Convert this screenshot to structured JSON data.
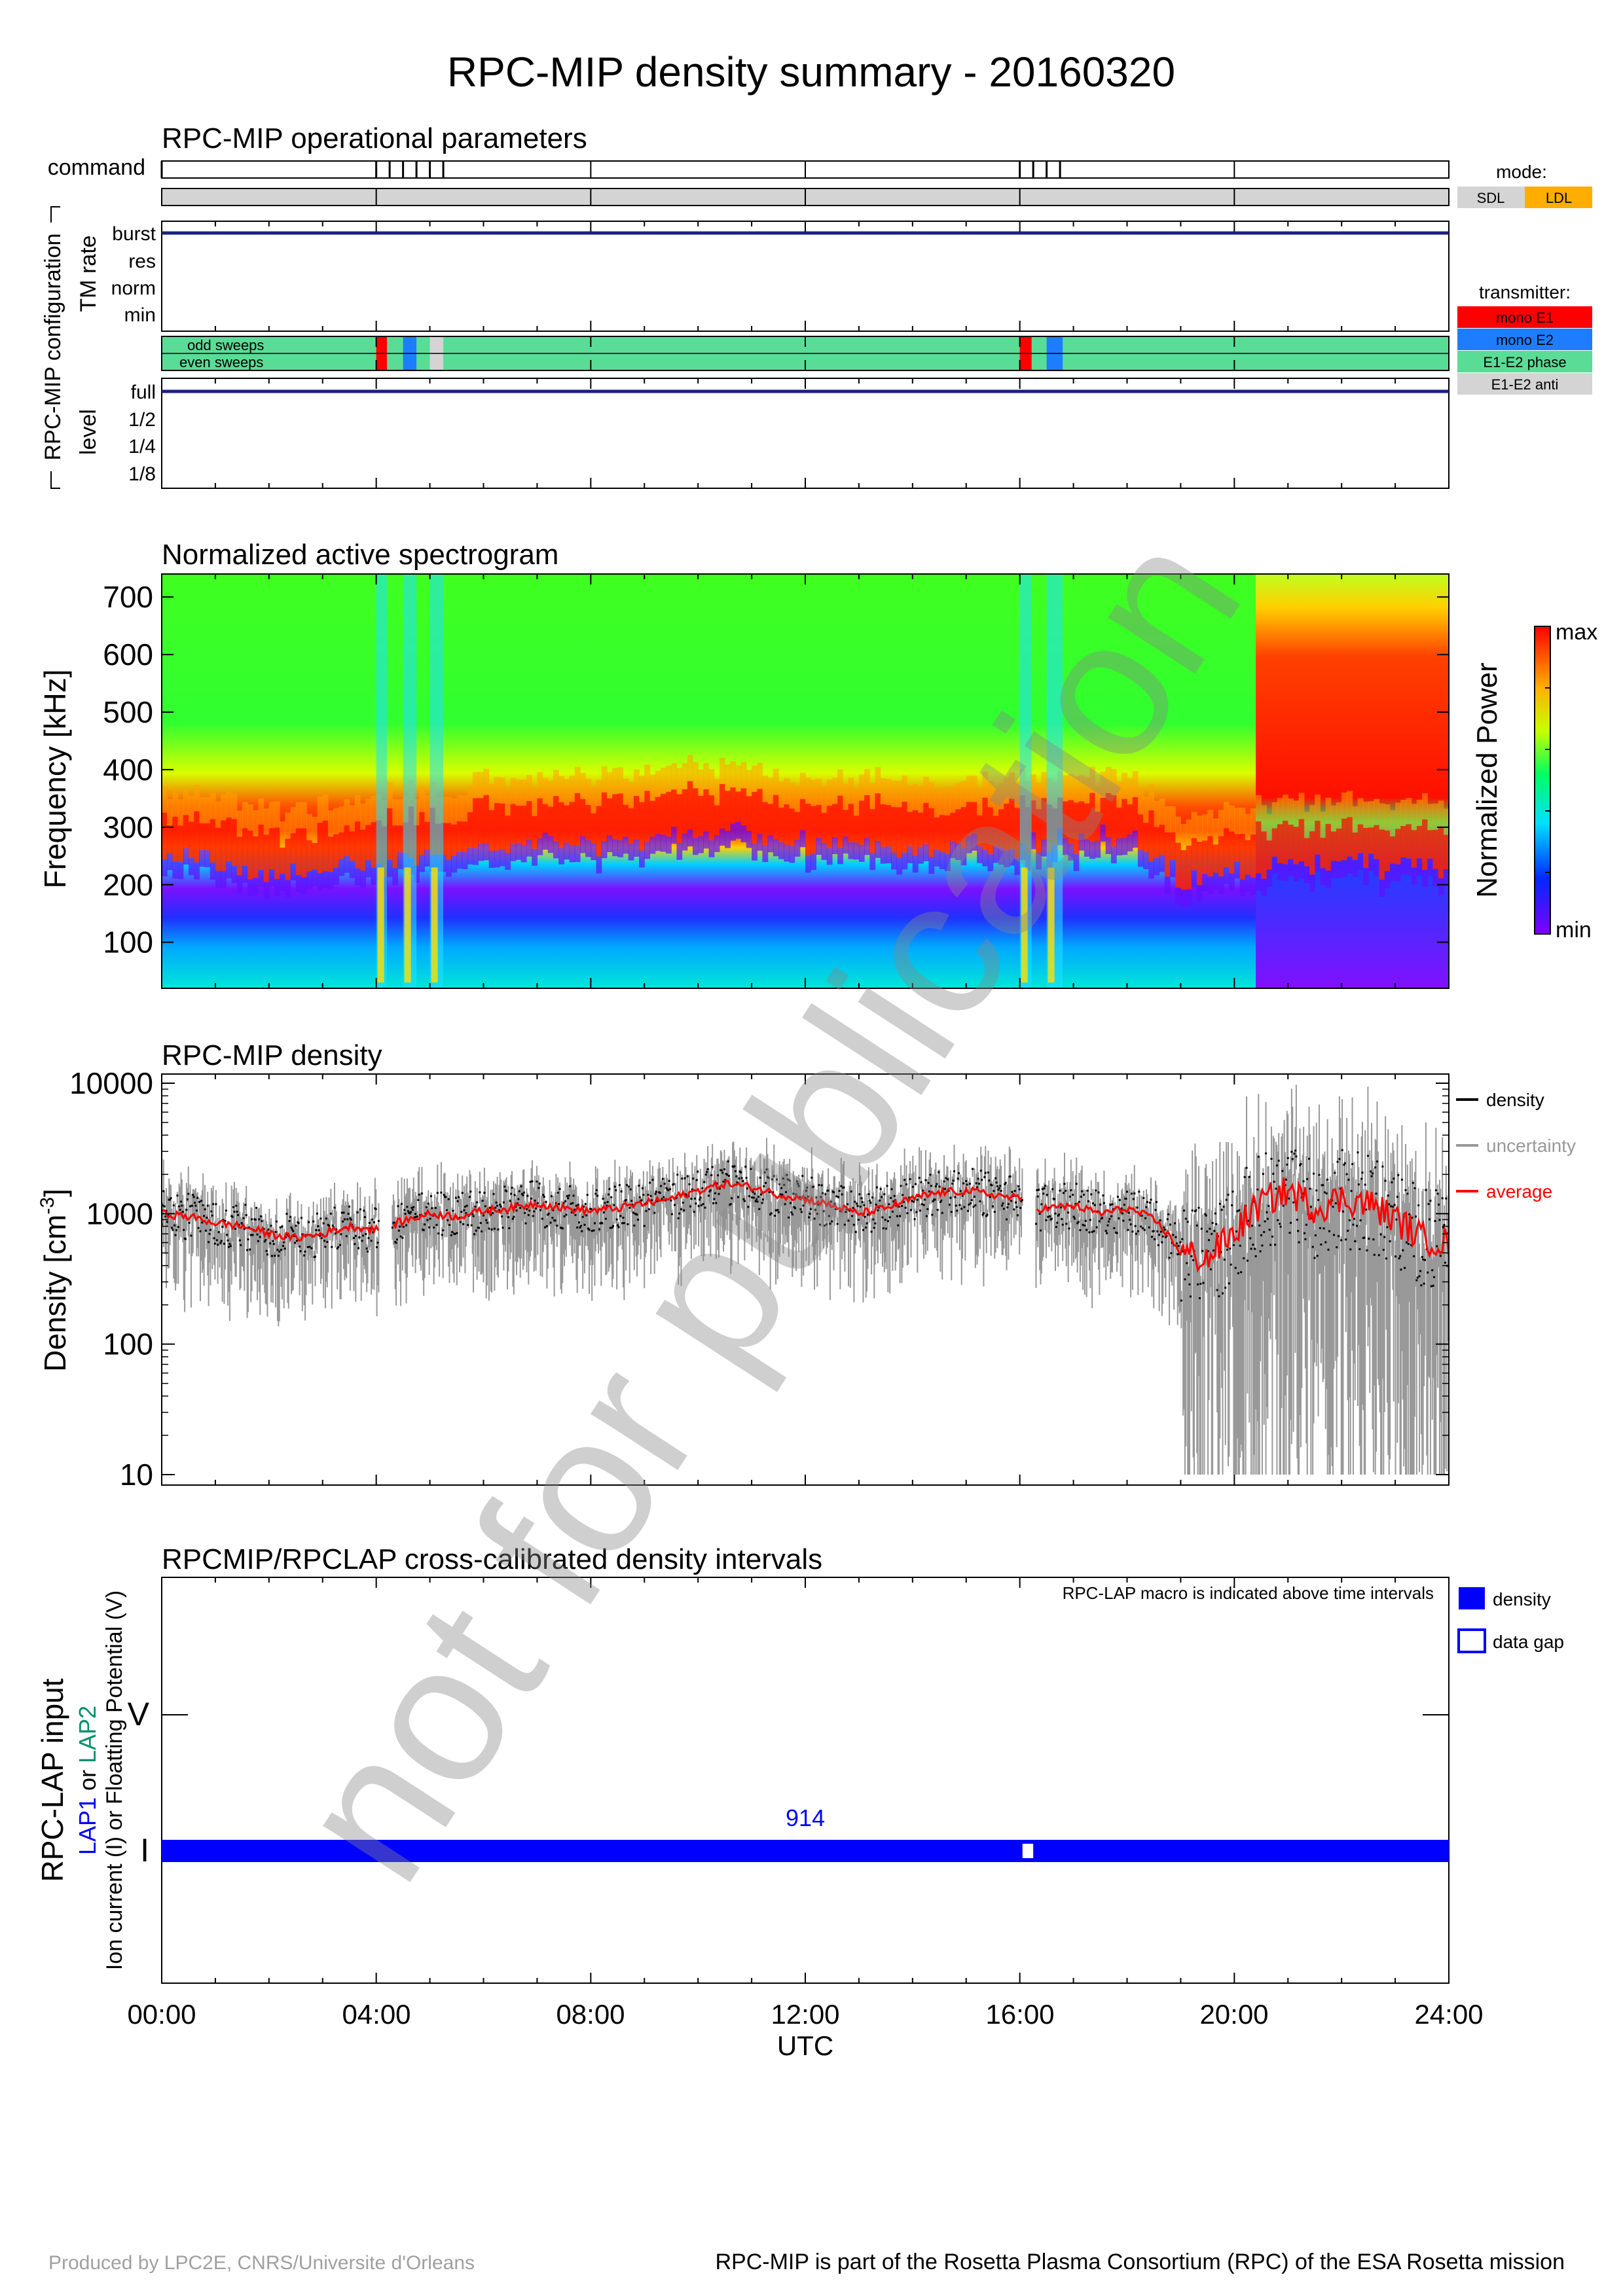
{
  "title": "RPC-MIP density summary - 20160320",
  "watermark": "not for publication",
  "colors": {
    "navy": "#1b1f86",
    "grey_bar": "#d4d4d4",
    "mode_sdl": "#d4d4d4",
    "mode_ldl": "#ffad00",
    "mono_e1": "#ff0000",
    "mono_e2": "#1e7dff",
    "e1e2_phase": "#5adc96",
    "e1e2_anti": "#d4d4d4",
    "density_black": "#000000",
    "uncertainty_grey": "#999999",
    "average_red": "#ff0000",
    "lap_blue": "#0000ff",
    "lap2_green": "#00906a"
  },
  "panel1": {
    "title": "RPC-MIP operational parameters",
    "command_label": "command",
    "config_label": "RPC-MIP configuration",
    "tm_rate_label": "TM rate",
    "tm_rate_levels": [
      "burst",
      "res",
      "norm",
      "min"
    ],
    "tm_rate_value": "burst",
    "sweep_labels": [
      "odd sweeps",
      "even sweeps"
    ],
    "level_label": "level",
    "level_levels": [
      "full",
      "1/2",
      "1/4",
      "1/8"
    ],
    "level_value": "full",
    "command_times_h": [
      0,
      4.0,
      4.25,
      4.5,
      4.75,
      5.0,
      5.25,
      16.0,
      16.25,
      16.5,
      16.75
    ],
    "transmitter_segments": [
      {
        "start_h": 4.0,
        "end_h": 4.2,
        "type": "mono E1"
      },
      {
        "start_h": 4.5,
        "end_h": 4.75,
        "type": "mono E2"
      },
      {
        "start_h": 5.0,
        "end_h": 5.25,
        "type": "E1-E2 anti"
      },
      {
        "start_h": 16.0,
        "end_h": 16.22,
        "type": "mono E1"
      },
      {
        "start_h": 16.5,
        "end_h": 16.8,
        "type": "mono E2"
      }
    ],
    "mode_legend_title": "mode:",
    "mode_legend": [
      "SDL",
      "LDL"
    ],
    "transmitter_legend_title": "transmitter:",
    "transmitter_legend": [
      "mono E1",
      "mono E2",
      "E1-E2 phase",
      "E1-E2 anti"
    ]
  },
  "panel2": {
    "title": "Normalized active spectrogram",
    "ylabel": "Frequency [kHz]",
    "yticks": [
      "100",
      "200",
      "300",
      "400",
      "500",
      "600",
      "700"
    ],
    "colorbar_label": "Normalized Power",
    "colorbar_max": "max",
    "colorbar_min": "min"
  },
  "panel3": {
    "title": "RPC-MIP density",
    "ylabel_main": "Density [cm",
    "ylabel_sup": "-3",
    "ylabel_end": "]",
    "yticks": [
      "10",
      "100",
      "1000",
      "10000"
    ],
    "legend": [
      "density",
      "uncertainty",
      "average"
    ]
  },
  "panel4": {
    "title": "RPCMIP/RPCLAP cross-calibrated density intervals",
    "note": "RPC-LAP macro is indicated above time intervals",
    "ylabel_main": "RPC-LAP input",
    "ylabel_lap1": "LAP1",
    "ylabel_or": " or ",
    "ylabel_lap2": "LAP2",
    "ylabel_sub": "Ion current (I) or Floatting Potential (V)",
    "ytick_v": "V",
    "ytick_i": "I",
    "macro_label": "914",
    "legend": [
      "density",
      "data gap"
    ]
  },
  "xaxis": {
    "label": "UTC",
    "ticks": [
      "00:00",
      "04:00",
      "08:00",
      "12:00",
      "16:00",
      "20:00",
      "24:00"
    ]
  },
  "footer": {
    "left": "Produced by LPC2E, CNRS/Universite d'Orleans",
    "right": "RPC-MIP is part of the Rosetta Plasma Consortium (RPC) of the ESA Rosetta mission"
  },
  "chart_data": [
    {
      "type": "heatmap",
      "title": "Normalized active spectrogram",
      "ylabel": "Frequency [kHz]",
      "xlabel": "UTC",
      "xlim": [
        0,
        24
      ],
      "ylim": [
        30,
        730
      ],
      "colorscale": "rainbow (min = violet, max = red)",
      "peak_frequency_kHz": {
        "x": [
          0,
          2,
          4,
          6,
          8,
          10,
          12,
          14,
          16,
          18,
          19,
          20,
          22,
          24
        ],
        "values": [
          290,
          250,
          270,
          300,
          305,
          330,
          310,
          300,
          305,
          320,
          240,
          260,
          270,
          260
        ]
      }
    },
    {
      "type": "line",
      "title": "RPC-MIP density",
      "ylabel": "Density [cm-3]",
      "xlabel": "UTC",
      "yscale": "log",
      "ylim": [
        10,
        10000
      ],
      "xlim": [
        0,
        24
      ],
      "series": [
        {
          "name": "average",
          "x": [
            0,
            0.5,
            1,
            1.5,
            2,
            2.5,
            3,
            3.5,
            4,
            5,
            5.5,
            6,
            6.5,
            7,
            7.5,
            8,
            8.5,
            9,
            9.5,
            10,
            10.5,
            11,
            11.5,
            12,
            12.5,
            13,
            13.5,
            14,
            14.5,
            15,
            15.5,
            16,
            16.3,
            16.5,
            17,
            17.5,
            18,
            18.5,
            19,
            19.5,
            20,
            20.5,
            21,
            21.5,
            22,
            22.5,
            23,
            23.5,
            24
          ],
          "values": [
            1000,
            950,
            850,
            800,
            700,
            650,
            700,
            800,
            750,
            1000,
            950,
            1050,
            1100,
            1200,
            1100,
            1050,
            1100,
            1200,
            1300,
            1500,
            1700,
            1600,
            1400,
            1300,
            1150,
            1000,
            1100,
            1300,
            1450,
            1500,
            1400,
            1300,
            null,
            1100,
            1150,
            1000,
            1100,
            900,
            500,
            450,
            700,
            1200,
            1500,
            1100,
            1300,
            1200,
            900,
            650,
            600
          ]
        }
      ]
    },
    {
      "type": "bar",
      "title": "RPCMIP/RPCLAP cross-calibrated density intervals",
      "xlabel": "UTC",
      "intervals": [
        {
          "start_h": 0,
          "end_h": 24,
          "input": "I",
          "macro": "914",
          "kind": "density"
        },
        {
          "start_h": 16.05,
          "end_h": 16.25,
          "input": "I",
          "kind": "data gap"
        }
      ]
    }
  ]
}
